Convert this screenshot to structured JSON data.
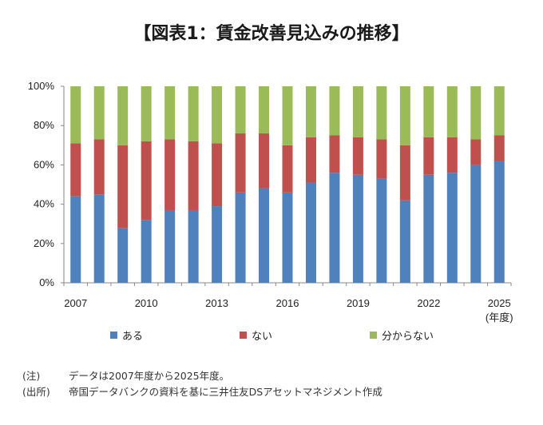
{
  "title": "【図表1：賃金改善見込みの推移】",
  "chart_data": {
    "type": "bar",
    "stacked": true,
    "percent": true,
    "categories": [
      "2007",
      "2008",
      "2009",
      "2010",
      "2011",
      "2012",
      "2013",
      "2014",
      "2015",
      "2016",
      "2017",
      "2018",
      "2019",
      "2020",
      "2021",
      "2022",
      "2023",
      "2024",
      "2025"
    ],
    "tick_labels": [
      "2007",
      "2010",
      "2013",
      "2016",
      "2019",
      "2022",
      "2025"
    ],
    "x_unit": "(年度)",
    "y_ticks": [
      "0%",
      "20%",
      "40%",
      "60%",
      "80%",
      "100%"
    ],
    "ylim": [
      0,
      100
    ],
    "series": [
      {
        "name": "ある",
        "color": "#4f81bd",
        "values": [
          44,
          45,
          28,
          32,
          37,
          37,
          39,
          46,
          48,
          46,
          51,
          56,
          55,
          53,
          42,
          55,
          56,
          60,
          62
        ]
      },
      {
        "name": "ない",
        "color": "#c0504d",
        "values": [
          27,
          28,
          42,
          40,
          36,
          35,
          32,
          30,
          28,
          24,
          23,
          19,
          19,
          20,
          28,
          19,
          18,
          13,
          13
        ]
      },
      {
        "name": "分からない",
        "color": "#9bbb59",
        "values": [
          29,
          27,
          30,
          28,
          27,
          28,
          29,
          24,
          24,
          30,
          26,
          25,
          26,
          27,
          30,
          26,
          26,
          27,
          25
        ]
      }
    ],
    "legend_position": "bottom"
  },
  "notes": [
    {
      "label": "(注)",
      "text": "データは2007年度から2025年度。"
    },
    {
      "label": "(出所)",
      "text": "帝国データバンクの資料を基に三井住友DSアセットマネジメント作成"
    }
  ]
}
